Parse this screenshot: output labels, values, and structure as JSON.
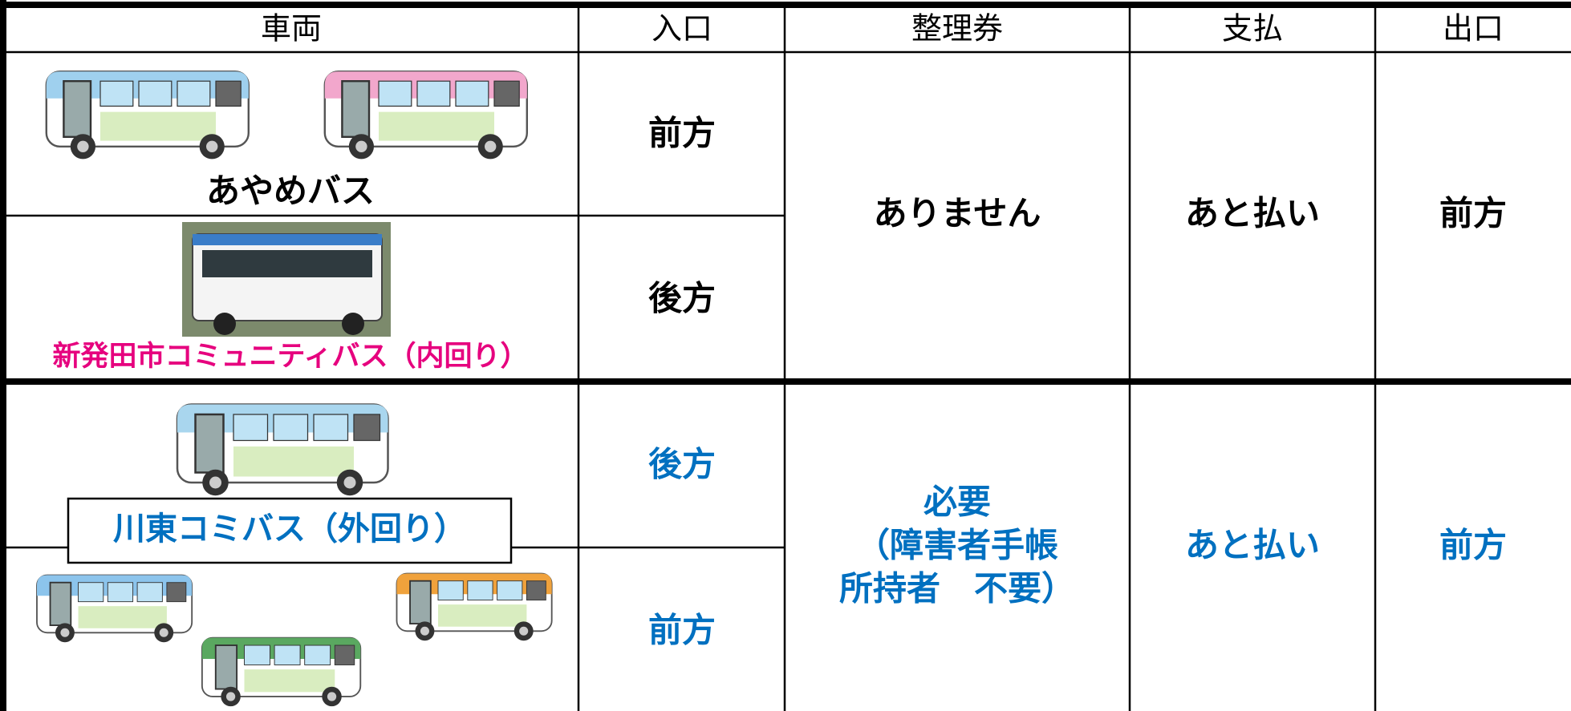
{
  "header": {
    "columns": [
      "車両",
      "入口",
      "整理券",
      "支払",
      "出口"
    ]
  },
  "groups": [
    {
      "rows": [
        {
          "vehicle": "あやめバス",
          "entrance": "前方"
        },
        {
          "vehicle": "新発田市コミュニティバス（内回り）",
          "entrance": "後方"
        }
      ],
      "ticket": [
        "ありません"
      ],
      "payment": "あと払い",
      "exit": "前方"
    },
    {
      "rows": [
        {
          "vehicle": "川東コミバス（外回り）",
          "entrance": "後方"
        },
        {
          "entrance": "前方"
        }
      ],
      "ticket": [
        "必要",
        "（障害者手帳",
        "所持者　不要）"
      ],
      "payment": "あと払い",
      "exit": "前方"
    }
  ]
}
